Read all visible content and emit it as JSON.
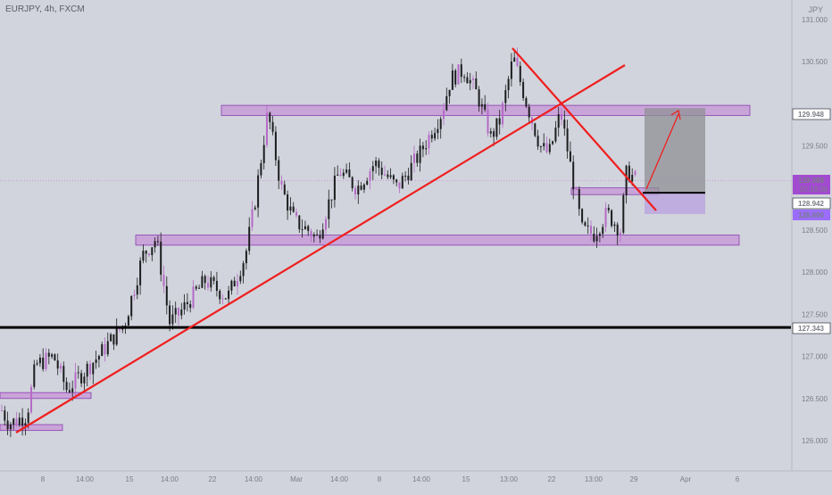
{
  "header": {
    "symbol": "EURJPY, 4h, FXCM",
    "currency": "JPY"
  },
  "colors": {
    "background": "#d1d4dc",
    "candle": "#1d1d1f",
    "candle_alt": "#b56ac7",
    "trendline": "#f01e1e",
    "zone_fill": "#c48ad6",
    "zone_stroke": "#8a3fb0",
    "level_line": "#000000",
    "position_target": "#8f9096",
    "position_stop": "#b9a3df",
    "badge_purple": "#a24bd0",
    "badge_dark": "#131722",
    "badge_lilac": "#9b6dff"
  },
  "chart_data": {
    "type": "candlestick",
    "title": "EURJPY, 4h, FXCM",
    "ylabel": "JPY",
    "ylim": [
      125.85,
      131.25
    ],
    "y_ticks": [
      "131.000",
      "130.500",
      "129.500",
      "129.000",
      "128.500",
      "128.000",
      "127.500",
      "127.000",
      "126.500",
      "126.000"
    ],
    "x_ticks": [
      "8",
      "14:00",
      "15",
      "14:00",
      "22",
      "14:00",
      "Mar",
      "14:00",
      "8",
      "14:00",
      "15",
      "13:00",
      "22",
      "13:00",
      "29",
      "Apr",
      "6"
    ],
    "price_badges": [
      {
        "name": "resistance",
        "value": "129.948"
      },
      {
        "name": "current",
        "value": "129.088",
        "sub": "02:18:35"
      },
      {
        "name": "entry",
        "value": "128.942"
      },
      {
        "name": "stop",
        "value": "128.690"
      },
      {
        "name": "support",
        "value": "127.343"
      }
    ],
    "zones": [
      {
        "name": "resistance-zone",
        "from": 129.86,
        "to": 129.98
      },
      {
        "name": "support-zone",
        "from": 128.32,
        "to": 128.44
      },
      {
        "name": "left-zone-upper",
        "from": 126.5,
        "to": 126.57
      },
      {
        "name": "left-zone-lower",
        "from": 126.12,
        "to": 126.19
      },
      {
        "name": "entry-zone",
        "from": 128.92,
        "to": 129.0
      }
    ],
    "horizontal_levels": [
      127.343,
      128.942
    ],
    "long_position": {
      "entry": 128.942,
      "target": 129.948,
      "stop": 128.69
    }
  }
}
